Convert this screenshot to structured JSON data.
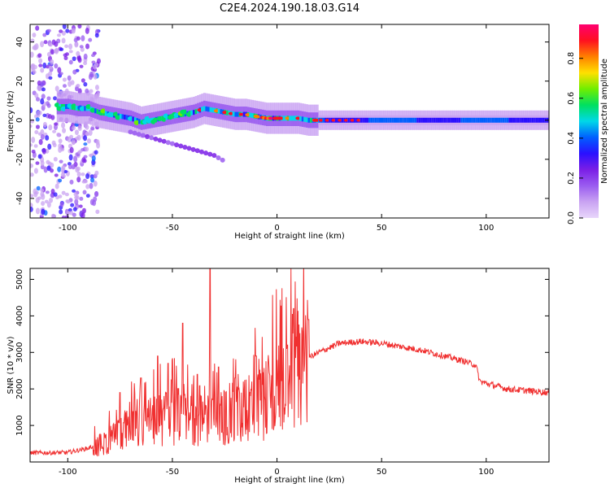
{
  "title": "C2E4.2024.190.18.03.G14",
  "colors": {
    "snr_line": "#f03030",
    "axes": "#000000",
    "colormap_stops": [
      "#e8d6fb",
      "#c9a3f2",
      "#9a5cf0",
      "#7a1ee6",
      "#2a10ff",
      "#0060ff",
      "#00d8e8",
      "#00e060",
      "#70ee00",
      "#ffe000",
      "#ff8000",
      "#ff1020",
      "#ff0070"
    ]
  },
  "chart_data": [
    {
      "type": "heatmap",
      "name": "spectrogram",
      "xlabel": "Height of straight line (km)",
      "ylabel": "Frequency (Hz)",
      "xlim": [
        -118,
        130
      ],
      "ylim": [
        -50,
        49
      ],
      "xticks": [
        -100,
        -50,
        0,
        50,
        100
      ],
      "yticks": [
        -40,
        -20,
        0,
        20,
        40
      ],
      "colorbar": {
        "label": "Normalized spectral amplitude",
        "range": [
          0,
          0.97
        ],
        "ticks": [
          "0.0",
          "0.2",
          "0.4",
          "0.6",
          "0.8"
        ]
      },
      "main_track": [
        {
          "x": -100,
          "y": 7
        },
        {
          "x": -95,
          "y": 6
        },
        {
          "x": -90,
          "y": 6
        },
        {
          "x": -85,
          "y": 4
        },
        {
          "x": -80,
          "y": 3
        },
        {
          "x": -75,
          "y": 2
        },
        {
          "x": -70,
          "y": 1
        },
        {
          "x": -65,
          "y": -1
        },
        {
          "x": -60,
          "y": 0
        },
        {
          "x": -55,
          "y": 1
        },
        {
          "x": -50,
          "y": 2
        },
        {
          "x": -45,
          "y": 3
        },
        {
          "x": -40,
          "y": 4
        },
        {
          "x": -35,
          "y": 6
        },
        {
          "x": -30,
          "y": 5
        },
        {
          "x": -25,
          "y": 4
        },
        {
          "x": -20,
          "y": 3
        },
        {
          "x": -15,
          "y": 3
        },
        {
          "x": -10,
          "y": 2
        },
        {
          "x": -5,
          "y": 1
        },
        {
          "x": 0,
          "y": 1
        },
        {
          "x": 5,
          "y": 1
        },
        {
          "x": 10,
          "y": 1
        },
        {
          "x": 15,
          "y": 0
        },
        {
          "x": 20,
          "y": 0
        },
        {
          "x": 30,
          "y": 0
        },
        {
          "x": 50,
          "y": 0
        },
        {
          "x": 80,
          "y": 0
        },
        {
          "x": 100,
          "y": 0
        },
        {
          "x": 130,
          "y": 0
        }
      ],
      "secondary_track": [
        {
          "x": -70,
          "y": -6
        },
        {
          "x": -60,
          "y": -9
        },
        {
          "x": -50,
          "y": -12
        },
        {
          "x": -40,
          "y": -15
        },
        {
          "x": -30,
          "y": -18
        },
        {
          "x": -25,
          "y": -21
        }
      ]
    },
    {
      "type": "line",
      "name": "snr",
      "xlabel": "Height of straight line (km)",
      "ylabel": "SNR (10 * v/v)",
      "xlim": [
        -118,
        130
      ],
      "ylim": [
        0,
        5300
      ],
      "xticks": [
        -100,
        -50,
        0,
        50,
        100
      ],
      "yticks": [
        1000,
        2000,
        3000,
        4000,
        5000
      ],
      "envelope": [
        {
          "x": -118,
          "y": 250
        },
        {
          "x": -110,
          "y": 250
        },
        {
          "x": -100,
          "y": 260
        },
        {
          "x": -90,
          "y": 380
        },
        {
          "x": -80,
          "y": 650
        },
        {
          "x": -70,
          "y": 1000
        },
        {
          "x": -60,
          "y": 1200
        },
        {
          "x": -50,
          "y": 1350
        },
        {
          "x": -40,
          "y": 1450
        },
        {
          "x": -30,
          "y": 1350
        },
        {
          "x": -20,
          "y": 1400
        },
        {
          "x": -10,
          "y": 1750
        },
        {
          "x": 0,
          "y": 2200
        },
        {
          "x": 10,
          "y": 2700
        },
        {
          "x": 20,
          "y": 3000
        },
        {
          "x": 30,
          "y": 3250
        },
        {
          "x": 40,
          "y": 3300
        },
        {
          "x": 50,
          "y": 3250
        },
        {
          "x": 60,
          "y": 3150
        },
        {
          "x": 70,
          "y": 3050
        },
        {
          "x": 80,
          "y": 2900
        },
        {
          "x": 90,
          "y": 2750
        },
        {
          "x": 95,
          "y": 2650
        },
        {
          "x": 97,
          "y": 2200
        },
        {
          "x": 110,
          "y": 2000
        },
        {
          "x": 130,
          "y": 1900
        }
      ],
      "spikes": [
        {
          "x": -75,
          "y": 1900
        },
        {
          "x": -65,
          "y": 2300
        },
        {
          "x": -57,
          "y": 2900
        },
        {
          "x": -52,
          "y": 2700
        },
        {
          "x": -45,
          "y": 3800
        },
        {
          "x": -38,
          "y": 2400
        },
        {
          "x": -32,
          "y": 5300
        },
        {
          "x": -28,
          "y": 2600
        },
        {
          "x": -20,
          "y": 2300
        },
        {
          "x": -10,
          "y": 2900
        },
        {
          "x": 5,
          "y": 3200
        },
        {
          "x": 8,
          "y": 4200
        },
        {
          "x": 15,
          "y": 3900
        }
      ]
    }
  ]
}
